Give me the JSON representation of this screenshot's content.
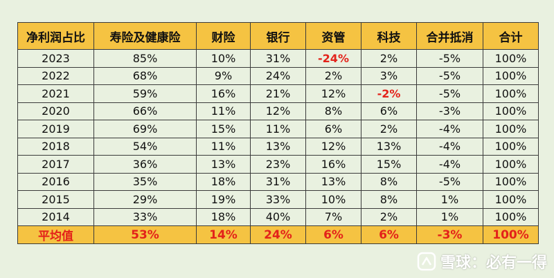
{
  "table": {
    "headers": [
      "净利润占比",
      "寿险及健康险",
      "财险",
      "银行",
      "资管",
      "科技",
      "合并抵消",
      "合计"
    ],
    "rows": [
      [
        "2023",
        "85%",
        "10%",
        "31%",
        "-24%",
        "2%",
        "-5%",
        "100%"
      ],
      [
        "2022",
        "68%",
        "9%",
        "24%",
        "2%",
        "3%",
        "-5%",
        "100%"
      ],
      [
        "2021",
        "59%",
        "16%",
        "21%",
        "12%",
        "-2%",
        "-5%",
        "100%"
      ],
      [
        "2020",
        "66%",
        "11%",
        "12%",
        "8%",
        "6%",
        "-3%",
        "100%"
      ],
      [
        "2019",
        "69%",
        "15%",
        "11%",
        "6%",
        "2%",
        "-4%",
        "100%"
      ],
      [
        "2018",
        "54%",
        "11%",
        "13%",
        "12%",
        "13%",
        "-4%",
        "100%"
      ],
      [
        "2017",
        "36%",
        "13%",
        "23%",
        "16%",
        "15%",
        "-4%",
        "100%"
      ],
      [
        "2016",
        "35%",
        "18%",
        "31%",
        "13%",
        "8%",
        "-5%",
        "100%"
      ],
      [
        "2015",
        "29%",
        "19%",
        "33%",
        "10%",
        "8%",
        "1%",
        "100%"
      ],
      [
        "2014",
        "33%",
        "18%",
        "40%",
        "7%",
        "2%",
        "1%",
        "100%"
      ]
    ],
    "highlighted_negative_cells": [
      "2023-资管",
      "2021-科技"
    ],
    "average_row": [
      "平均值",
      "53%",
      "14%",
      "24%",
      "6%",
      "6%",
      "-3%",
      "100%"
    ]
  },
  "watermark": {
    "text": "雪球：必有一得"
  },
  "colors": {
    "background": "#e9f1e0",
    "header_fill": "#f5c342",
    "negative_text": "#e3221a",
    "border": "#3a3a3a"
  }
}
